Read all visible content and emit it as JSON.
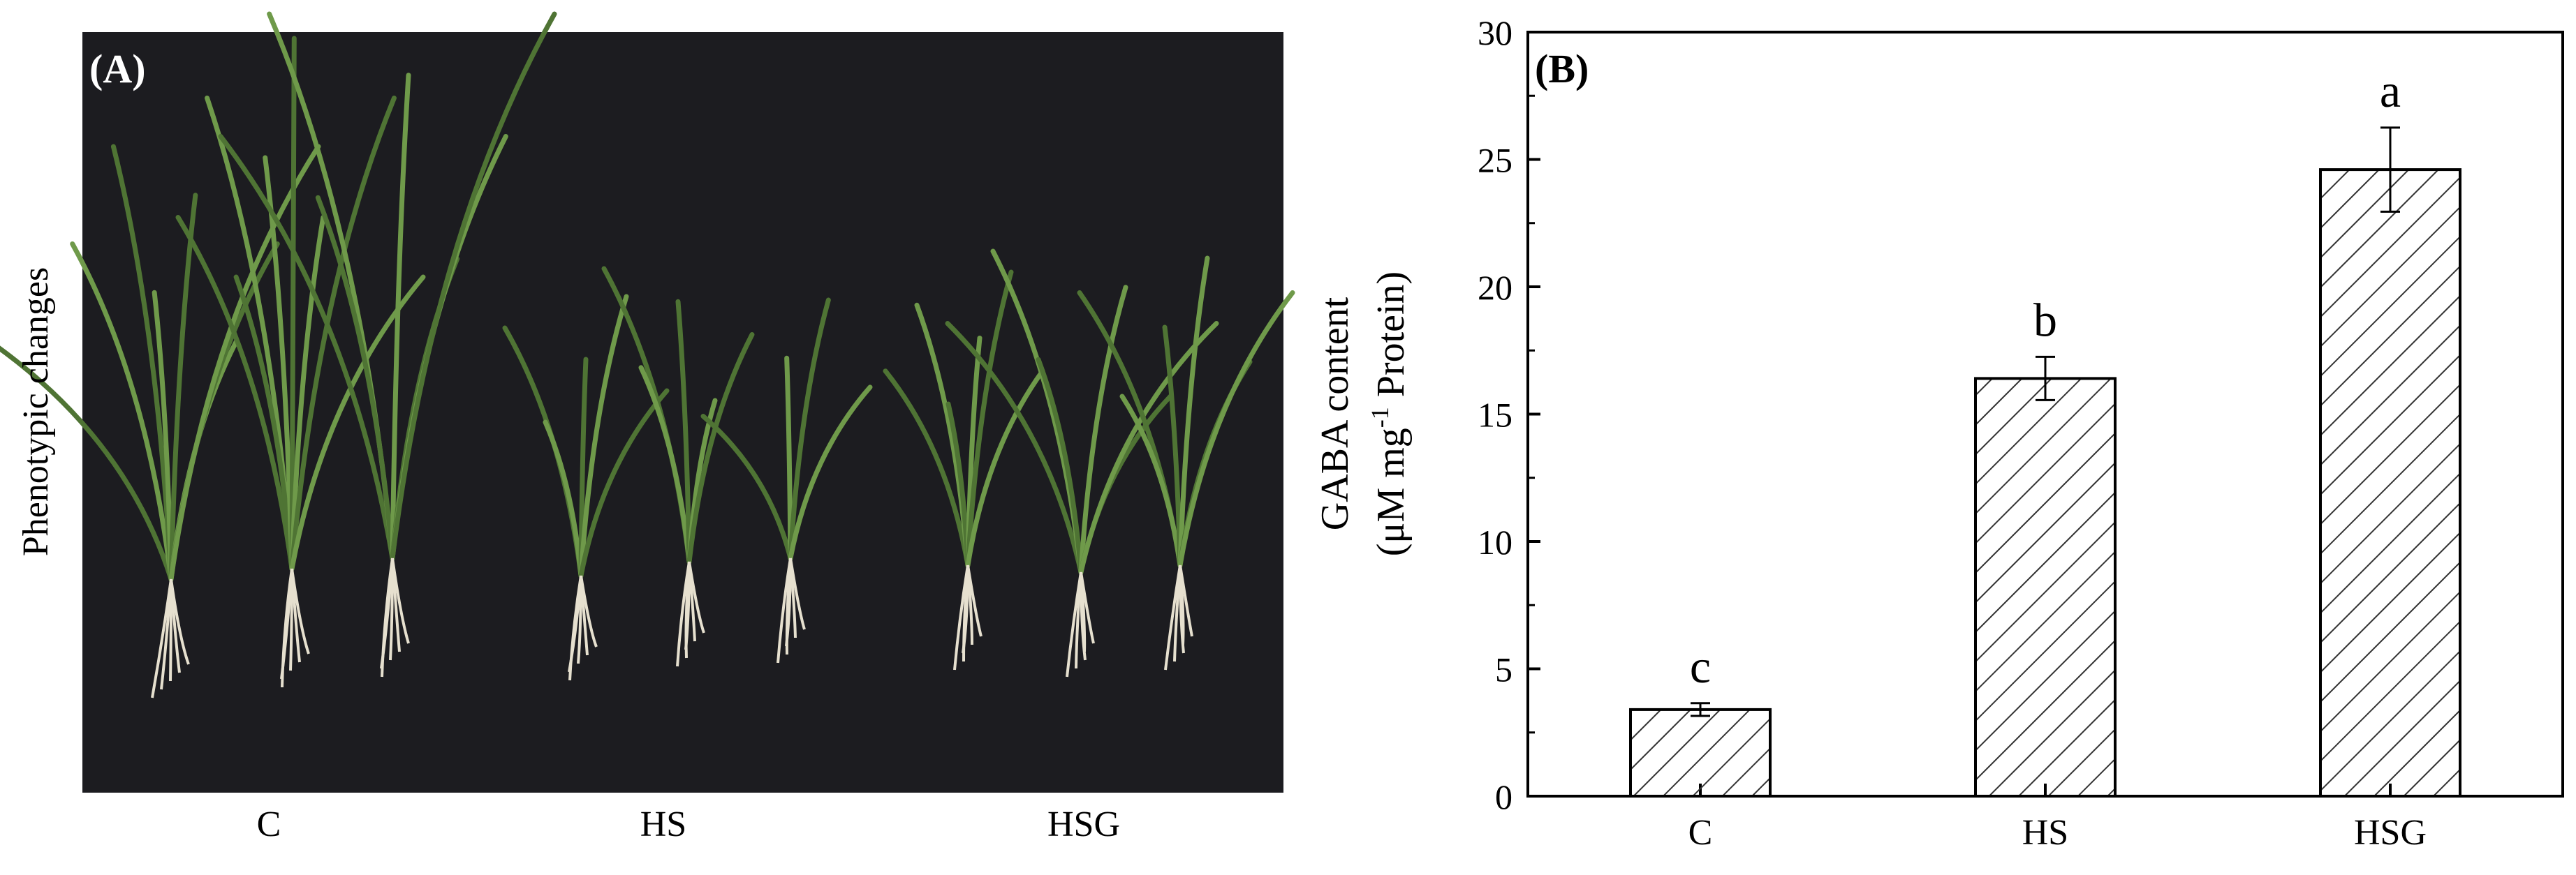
{
  "panel_a": {
    "label": "(A)",
    "ylabel": "Phenotypic changes",
    "groups": [
      "C",
      "HS",
      "HSG"
    ],
    "colors": {
      "background": "#1c1c20",
      "leaf": "#6f9a4a",
      "leaf_dark": "#4f7434",
      "root": "#e6e0cf"
    }
  },
  "chart_data": {
    "type": "bar",
    "panel_label": "(B)",
    "categories": [
      "C",
      "HS",
      "HSG"
    ],
    "values": [
      3.4,
      16.4,
      24.6
    ],
    "errors": [
      0.25,
      0.85,
      1.65
    ],
    "significance": [
      "c",
      "b",
      "a"
    ],
    "ylabel_line1": "GABA content",
    "ylabel_line2_pre": "(μM mg",
    "ylabel_sup": "-1",
    "ylabel_line2_post": " Protein)",
    "ylim": [
      0,
      30
    ],
    "yticks": [
      0,
      5,
      10,
      15,
      20,
      25,
      30
    ],
    "bar_fill": "hatched",
    "grid": false
  }
}
